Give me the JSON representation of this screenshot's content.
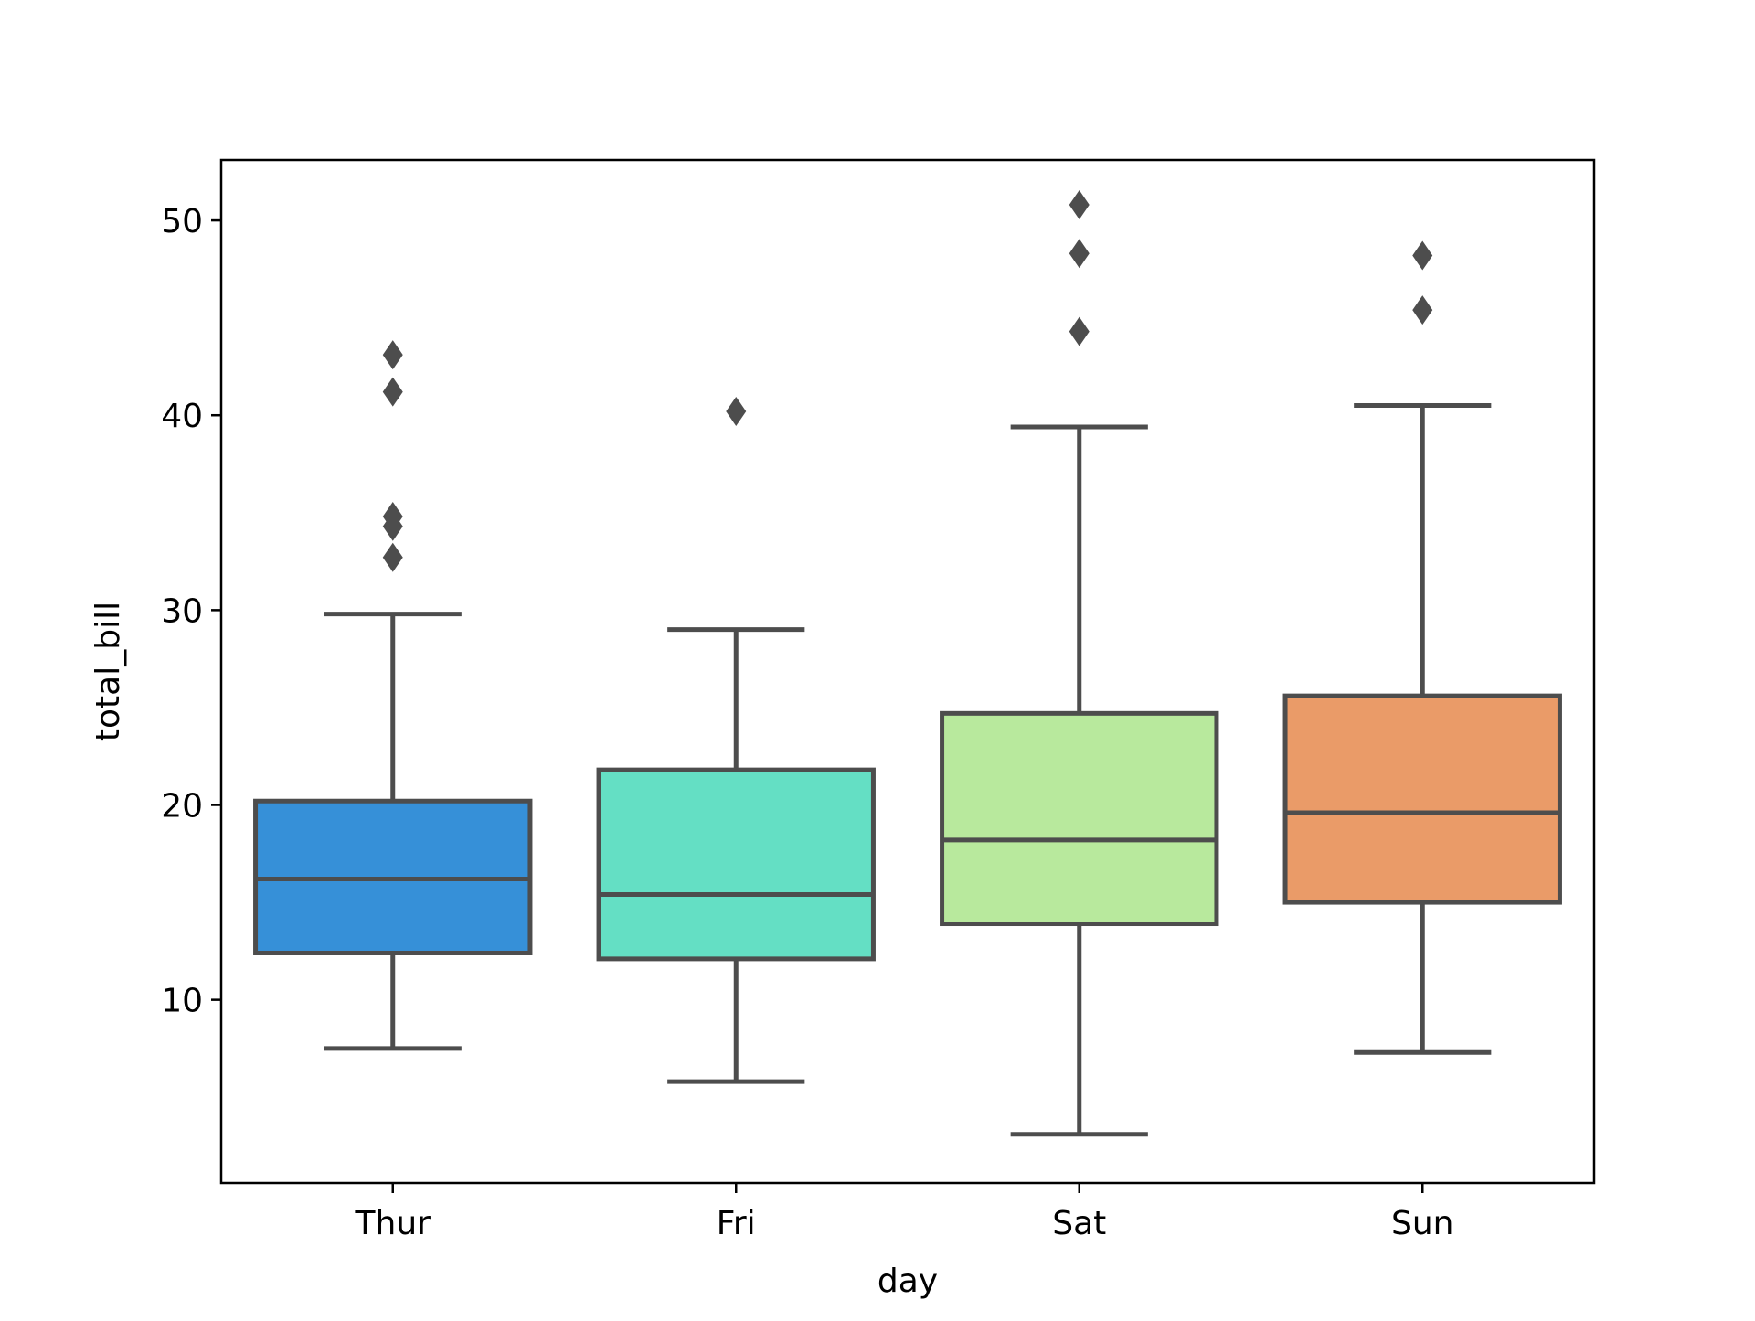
{
  "chart_data": {
    "type": "box",
    "title": "",
    "xlabel": "day",
    "ylabel": "total_bill",
    "categories": [
      "Thur",
      "Fri",
      "Sat",
      "Sun"
    ],
    "ylim": [
      0.6,
      53.1
    ],
    "yticks": [
      10,
      20,
      30,
      40,
      50
    ],
    "grid": false,
    "line_color": "#4d4d4d",
    "boxes": [
      {
        "category": "Thur",
        "color": "#3690d8",
        "whisker_low": 7.5,
        "q1": 12.4,
        "median": 16.2,
        "q3": 20.2,
        "whisker_high": 29.8,
        "outliers": [
          32.7,
          34.3,
          34.8,
          41.2,
          43.1
        ]
      },
      {
        "category": "Fri",
        "color": "#64dfc4",
        "whisker_low": 5.8,
        "q1": 12.1,
        "median": 15.4,
        "q3": 21.8,
        "whisker_high": 29.0,
        "outliers": [
          40.2
        ]
      },
      {
        "category": "Sat",
        "color": "#b8e99d",
        "whisker_low": 3.1,
        "q1": 13.9,
        "median": 18.2,
        "q3": 24.7,
        "whisker_high": 39.4,
        "outliers": [
          44.3,
          48.3,
          50.8
        ]
      },
      {
        "category": "Sun",
        "color": "#ea9b68",
        "whisker_low": 7.3,
        "q1": 15.0,
        "median": 19.6,
        "q3": 25.6,
        "whisker_high": 40.5,
        "outliers": [
          45.4,
          48.2
        ]
      }
    ]
  }
}
